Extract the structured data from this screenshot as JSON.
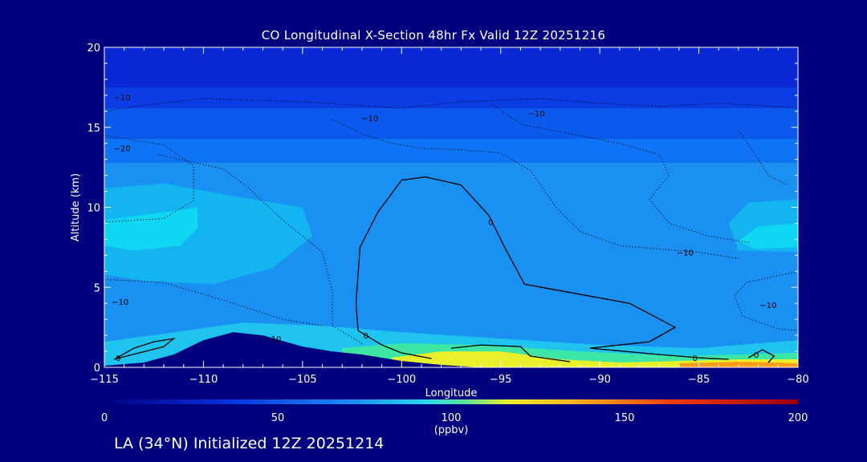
{
  "title": "CO Longitudinal X-Section 48hr  Fx Valid 12Z 20251216",
  "footer": "LA (34°N) Initialized 12Z 20251214",
  "chart_data": {
    "type": "heatmap",
    "title": "CO Longitudinal X-Section 48hr  Fx Valid 12Z 20251216",
    "xlabel": "Longitude",
    "ylabel": "Altitude (km)",
    "xlim": [
      -115,
      -80
    ],
    "ylim": [
      0,
      20
    ],
    "x_ticks": [
      -115,
      -110,
      -105,
      -100,
      -95,
      -90,
      -85,
      -80
    ],
    "x_tick_labels": [
      "−115",
      "−110",
      "−105",
      "−100",
      "−95",
      "−90",
      "−85",
      "−80"
    ],
    "y_ticks": [
      0,
      5,
      10,
      15,
      20
    ],
    "colorbar": {
      "min": 0,
      "max": 200,
      "ticks": [
        0,
        50,
        100,
        150,
        200
      ],
      "units": "(ppbv)"
    },
    "fill_bands": [
      {
        "from": 17.5,
        "to": 20,
        "color": "#0a28d6"
      },
      {
        "from": 16.2,
        "to": 17.5,
        "color": "#0b3ce4"
      },
      {
        "from": 14.3,
        "to": 16.2,
        "color": "#0b5aee"
      },
      {
        "from": 12.8,
        "to": 14.3,
        "color": "#0e73f4"
      },
      {
        "from": 0,
        "to": 12.8,
        "color": "#1a90f2"
      }
    ],
    "pockets": [
      {
        "label": "high CO west",
        "color": "#12b4f2",
        "points": [
          [
            -115,
            11.2
          ],
          [
            -112,
            11.5
          ],
          [
            -108,
            10.6
          ],
          [
            -105,
            10
          ],
          [
            -104.5,
            8.2
          ],
          [
            -106.5,
            6.2
          ],
          [
            -109.5,
            5.2
          ],
          [
            -113,
            5.4
          ],
          [
            -115,
            5.8
          ]
        ]
      },
      {
        "label": "peak CO west",
        "color": "#0fd6f2",
        "points": [
          [
            -115,
            9.2
          ],
          [
            -112,
            9.7
          ],
          [
            -110.3,
            10
          ],
          [
            -110.3,
            8.7
          ],
          [
            -111.2,
            7.6
          ],
          [
            -113.5,
            7.3
          ],
          [
            -115,
            7.6
          ]
        ]
      },
      {
        "label": "high CO east",
        "color": "#12b4f2",
        "points": [
          [
            -80,
            10.5
          ],
          [
            -82.5,
            10.3
          ],
          [
            -83.5,
            9
          ],
          [
            -83,
            7.3
          ],
          [
            -80,
            7.2
          ]
        ]
      },
      {
        "label": "peak CO east",
        "color": "#0fd6f2",
        "points": [
          [
            -80,
            9
          ],
          [
            -82,
            8.8
          ],
          [
            -83,
            7.9
          ],
          [
            -82.2,
            7.4
          ],
          [
            -80,
            7.5
          ]
        ]
      },
      {
        "label": "boundary layer cyan",
        "color": "#1ec4ee",
        "points": [
          [
            -115,
            1.6
          ],
          [
            -112,
            2.1
          ],
          [
            -108,
            2.8
          ],
          [
            -104,
            2.6
          ],
          [
            -100,
            2.2
          ],
          [
            -95,
            1.8
          ],
          [
            -90,
            1.4
          ],
          [
            -85,
            1.2
          ],
          [
            -80,
            1.7
          ],
          [
            -80,
            0
          ],
          [
            -115,
            0
          ]
        ]
      },
      {
        "label": "boundary layer green",
        "color": "#3ee6a6",
        "points": [
          [
            -103,
            1.2
          ],
          [
            -100,
            1.5
          ],
          [
            -96,
            1.4
          ],
          [
            -91,
            1
          ],
          [
            -86,
            0.7
          ],
          [
            -80,
            0.9
          ],
          [
            -80,
            0
          ],
          [
            -103,
            0
          ]
        ]
      },
      {
        "label": "boundary layer yellow",
        "color": "#e8f02a",
        "points": [
          [
            -100.5,
            0.6
          ],
          [
            -98,
            1
          ],
          [
            -95,
            1
          ],
          [
            -92,
            0.5
          ],
          [
            -89,
            0.3
          ],
          [
            -86,
            0.4
          ],
          [
            -83,
            0.5
          ],
          [
            -80,
            0.5
          ],
          [
            -80,
            0
          ],
          [
            -100.5,
            0
          ]
        ]
      },
      {
        "label": "boundary layer orange",
        "color": "#ff9c1a",
        "points": [
          [
            -86,
            0.25
          ],
          [
            -83,
            0.35
          ],
          [
            -81,
            0.3
          ],
          [
            -80,
            0.25
          ],
          [
            -80,
            0
          ],
          [
            -86,
            0
          ]
        ]
      }
    ],
    "terrain": [
      [
        -115,
        0.1
      ],
      [
        -113,
        0.3
      ],
      [
        -111.5,
        0.8
      ],
      [
        -110,
        1.7
      ],
      [
        -108.5,
        2.2
      ],
      [
        -107,
        2
      ],
      [
        -105,
        1.3
      ],
      [
        -103.5,
        1
      ],
      [
        -102,
        0.8
      ],
      [
        -100,
        0.4
      ],
      [
        -98,
        0.15
      ],
      [
        -96,
        0
      ],
      [
        -80,
        0
      ],
      [
        -80,
        0
      ],
      [
        -115,
        0
      ]
    ],
    "contours": [
      {
        "level": 0,
        "style": "solid",
        "points": [
          [
            -102.2,
            2.3
          ],
          [
            -102.3,
            4
          ],
          [
            -102.1,
            7.5
          ],
          [
            -101.2,
            9.7
          ],
          [
            -100,
            11.7
          ],
          [
            -98.8,
            11.9
          ],
          [
            -97,
            11.4
          ],
          [
            -95.6,
            9.5
          ],
          [
            -94.8,
            7.5
          ],
          [
            -93.8,
            5.2
          ],
          [
            -92.5,
            4.9
          ],
          [
            -88.5,
            4
          ],
          [
            -86.2,
            2.5
          ],
          [
            -87.5,
            1.6
          ],
          [
            -90.5,
            1.2
          ],
          [
            -87,
            0.8
          ],
          [
            -85,
            0.6
          ],
          [
            -83.5,
            0.5
          ]
        ]
      },
      {
        "level": 0,
        "style": "solid",
        "points": [
          [
            -102.2,
            2.3
          ],
          [
            -101,
            1.4
          ],
          [
            -100,
            0.9
          ],
          [
            -98.5,
            0.55
          ]
        ]
      },
      {
        "level": 0,
        "style": "solid",
        "points": [
          [
            -114.5,
            0.5
          ],
          [
            -113.5,
            1.2
          ],
          [
            -112.5,
            1.6
          ],
          [
            -111.5,
            1.8
          ],
          [
            -112,
            1.3
          ],
          [
            -114.2,
            0.6
          ],
          [
            -114.5,
            0.5
          ]
        ]
      },
      {
        "level": 0,
        "style": "solid",
        "points": [
          [
            -97.5,
            1.2
          ],
          [
            -96,
            1.4
          ],
          [
            -94,
            1.3
          ],
          [
            -93.5,
            0.7
          ],
          [
            -91.5,
            0.35
          ]
        ]
      },
      {
        "level": 0,
        "style": "solid",
        "points": [
          [
            -82.5,
            0.6
          ],
          [
            -81.8,
            1.1
          ],
          [
            -81.2,
            0.7
          ],
          [
            -81.5,
            0.3
          ]
        ]
      },
      {
        "level": -10,
        "style": "dotted",
        "points": [
          [
            -115,
            16
          ],
          [
            -113.5,
            16.3
          ],
          [
            -110,
            16.8
          ],
          [
            -105,
            16.6
          ],
          [
            -100,
            16.2
          ],
          [
            -97,
            16.6
          ],
          [
            -93,
            16.8
          ],
          [
            -90,
            16.5
          ],
          [
            -87,
            16.3
          ],
          [
            -84,
            16.5
          ],
          [
            -81,
            16.3
          ],
          [
            -80,
            16.2
          ]
        ]
      },
      {
        "level": -10,
        "style": "dotted",
        "points": [
          [
            -112.3,
            13.3
          ],
          [
            -109,
            12.4
          ],
          [
            -107.8,
            11.3
          ],
          [
            -106,
            9.2
          ],
          [
            -104,
            7.2
          ],
          [
            -103.5,
            4.8
          ],
          [
            -103.5,
            2.6
          ],
          [
            -102,
            1.5
          ]
        ]
      },
      {
        "level": -10,
        "style": "dotted",
        "points": [
          [
            -103.5,
            15.5
          ],
          [
            -102,
            14.6
          ],
          [
            -100.5,
            14
          ],
          [
            -99,
            13.7
          ],
          [
            -97,
            13.6
          ],
          [
            -95,
            13.4
          ],
          [
            -93.5,
            12.3
          ],
          [
            -92.2,
            10
          ],
          [
            -91,
            8.5
          ],
          [
            -89,
            7.6
          ],
          [
            -85,
            7.2
          ],
          [
            -83,
            6.8
          ]
        ]
      },
      {
        "level": -10,
        "style": "dotted",
        "points": [
          [
            -95.5,
            16.5
          ],
          [
            -94,
            15.2
          ],
          [
            -91.5,
            14.6
          ],
          [
            -89,
            14
          ],
          [
            -87,
            13.3
          ],
          [
            -86.5,
            12
          ],
          [
            -87.5,
            10.5
          ],
          [
            -86.5,
            9
          ],
          [
            -84.5,
            8.2
          ],
          [
            -82.5,
            7.8
          ]
        ]
      },
      {
        "level": -10,
        "style": "dotted",
        "points": [
          [
            -115,
            5.5
          ],
          [
            -112,
            5.3
          ],
          [
            -109,
            4.2
          ],
          [
            -106,
            3
          ],
          [
            -104,
            2.6
          ]
        ]
      },
      {
        "level": -10,
        "style": "dotted",
        "points": [
          [
            -80,
            6
          ],
          [
            -81.5,
            5.6
          ],
          [
            -82.6,
            5.3
          ],
          [
            -83.2,
            4.5
          ],
          [
            -82.8,
            3.2
          ],
          [
            -81,
            2.4
          ],
          [
            -80,
            2.3
          ]
        ]
      },
      {
        "level": -20,
        "style": "dotted",
        "points": [
          [
            -115,
            14.5
          ],
          [
            -113.5,
            14.2
          ],
          [
            -112,
            13.9
          ],
          [
            -110.5,
            12.6
          ],
          [
            -110.5,
            10.4
          ],
          [
            -112,
            9.3
          ],
          [
            -115,
            9.1
          ]
        ]
      },
      {
        "level": -20,
        "style": "dotted",
        "points": [
          [
            -83,
            14.8
          ],
          [
            -82.2,
            13.4
          ],
          [
            -81.5,
            12
          ],
          [
            -80.5,
            11.4
          ]
        ]
      }
    ],
    "contour_labels": [
      {
        "text": "−10",
        "x": -114.1,
        "y": 16.9
      },
      {
        "text": "−10",
        "x": -101.6,
        "y": 15.6
      },
      {
        "text": "−10",
        "x": -93.2,
        "y": 15.9
      },
      {
        "text": "−20",
        "x": -114.1,
        "y": 13.7
      },
      {
        "text": "−10",
        "x": -114.2,
        "y": 4.1
      },
      {
        "text": "−10",
        "x": -106.5,
        "y": 1.8
      },
      {
        "text": "−10",
        "x": -85.7,
        "y": 7.2
      },
      {
        "text": "−10",
        "x": -81.5,
        "y": 3.9
      },
      {
        "text": "0",
        "x": -95.5,
        "y": 9.1
      },
      {
        "text": "0",
        "x": -101.8,
        "y": 2.0
      },
      {
        "text": "0",
        "x": -114.3,
        "y": 0.6
      },
      {
        "text": "0",
        "x": -85.2,
        "y": 0.6
      },
      {
        "text": "0",
        "x": -82.1,
        "y": 0.8
      }
    ]
  }
}
